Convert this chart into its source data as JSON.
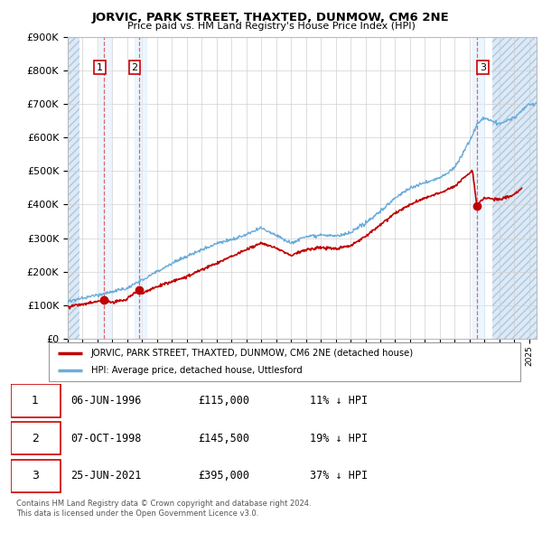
{
  "title": "JORVIC, PARK STREET, THAXTED, DUNMOW, CM6 2NE",
  "subtitle": "Price paid vs. HM Land Registry's House Price Index (HPI)",
  "ylim": [
    0,
    900000
  ],
  "ytick_labels": [
    "£0",
    "£100K",
    "£200K",
    "£300K",
    "£400K",
    "£500K",
    "£600K",
    "£700K",
    "£800K",
    "£900K"
  ],
  "ytick_values": [
    0,
    100000,
    200000,
    300000,
    400000,
    500000,
    600000,
    700000,
    800000,
    900000
  ],
  "sale_prices": [
    115000,
    145500,
    395000
  ],
  "sale_labels": [
    "1",
    "2",
    "3"
  ],
  "hpi_color": "#6aaddc",
  "sale_color": "#c00000",
  "dashed_color": "#e06060",
  "hatch_color": "#c8d8ec",
  "legend_entry1": "JORVIC, PARK STREET, THAXTED, DUNMOW, CM6 2NE (detached house)",
  "legend_entry2": "HPI: Average price, detached house, Uttlesford",
  "table_rows": [
    [
      "1",
      "06-JUN-1996",
      "£115,000",
      "11% ↓ HPI"
    ],
    [
      "2",
      "07-OCT-1998",
      "£145,500",
      "19% ↓ HPI"
    ],
    [
      "3",
      "25-JUN-2021",
      "£395,000",
      "37% ↓ HPI"
    ]
  ],
  "footer": "Contains HM Land Registry data © Crown copyright and database right 2024.\nThis data is licensed under the Open Government Licence v3.0.",
  "xmin": 1994.0,
  "xmax": 2025.5,
  "sale_years": [
    1996.44,
    1998.77,
    2021.48
  ]
}
